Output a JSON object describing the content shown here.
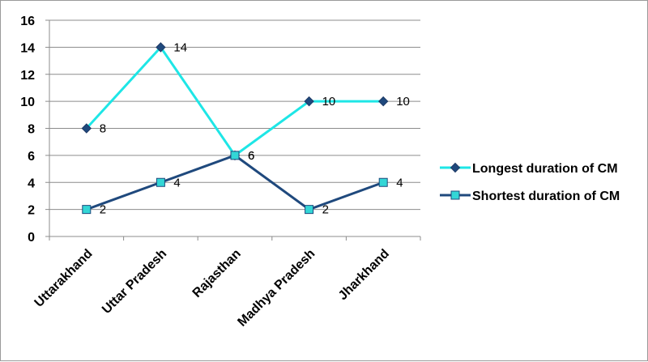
{
  "chart_data": {
    "type": "line",
    "title": "",
    "xlabel": "",
    "ylabel": "",
    "categories": [
      "Uttarakhand",
      "Uttar Pradesh",
      "Rajasthan",
      "Madhya Pradesh",
      "Jharkhand"
    ],
    "ylim": [
      0,
      16
    ],
    "yticks": [
      0,
      2,
      4,
      6,
      8,
      10,
      12,
      14,
      16
    ],
    "grid": true,
    "legend_position": "right",
    "series": [
      {
        "name": "Longest duration of CM",
        "values": [
          8,
          14,
          6,
          10,
          10
        ],
        "line_color": "#1EE6E6",
        "marker_color": "#1F497D",
        "marker": "diamond"
      },
      {
        "name": "Shortest duration of CM",
        "values": [
          2,
          4,
          6,
          2,
          4
        ],
        "line_color": "#1F497D",
        "marker_color": "#33D6D6",
        "marker": "square"
      }
    ],
    "data_labels": true
  }
}
